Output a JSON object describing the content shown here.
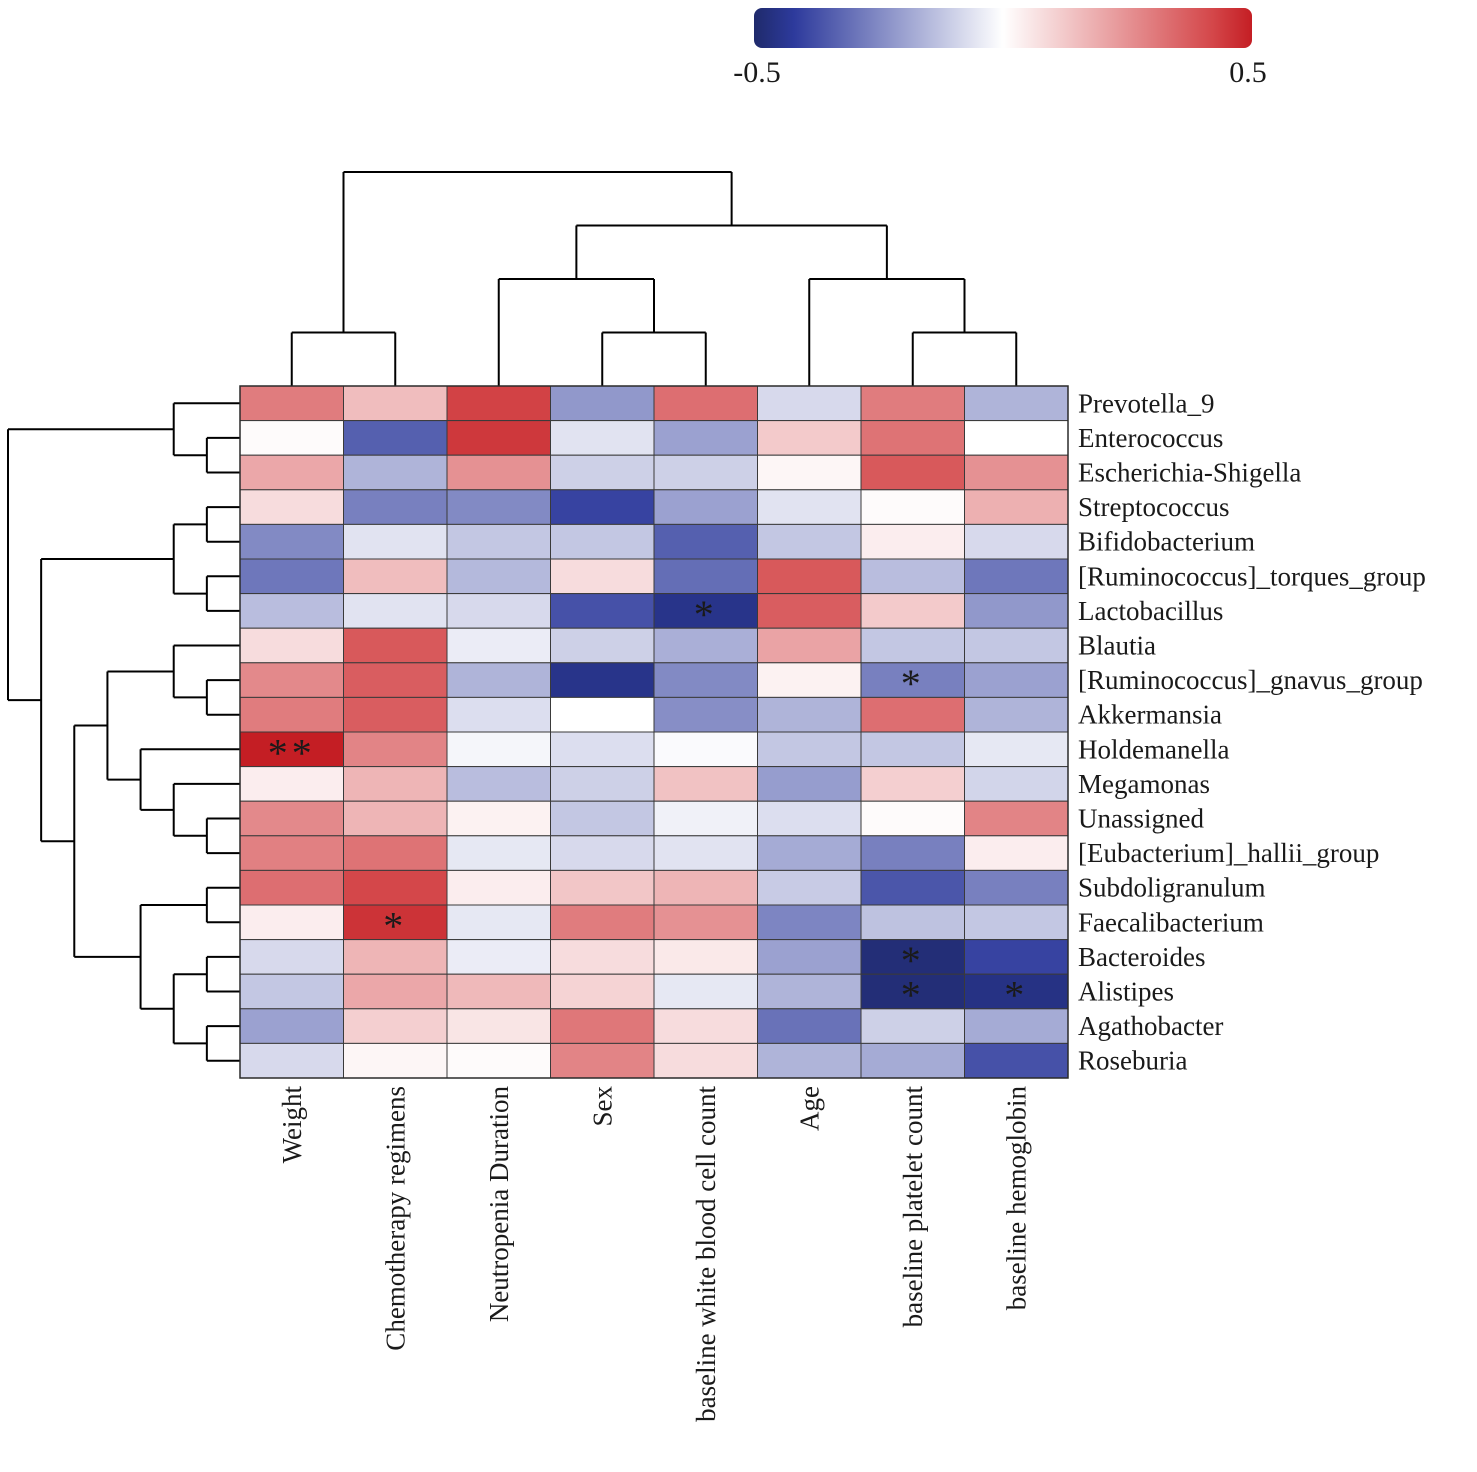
{
  "chart_data": {
    "type": "heatmap",
    "title": "",
    "colorbar": {
      "min": -0.5,
      "max": 0.5,
      "min_label": "-0.5",
      "max_label": "0.5",
      "colors": [
        "#1f2a6b",
        "#2d3a9c",
        "#ffffff",
        "#d4474a",
        "#c41e24"
      ]
    },
    "columns": [
      "Weight",
      "Chemotherapy regimens",
      "Neutropenia Duration",
      "Sex",
      "baseline white blood cell count",
      "Age",
      "baseline platelet count",
      "baseline hemoglobin"
    ],
    "rows": [
      "Prevotella_9",
      "Enterococcus",
      "Escherichia-Shigella",
      "Streptococcus",
      "Bifidobacterium",
      "[Ruminococcus]_torques_group",
      "Lactobacillus",
      "Blautia",
      "[Ruminococcus]_gnavus_group",
      "Akkermansia",
      "Holdemanella",
      "Megamonas",
      "Unassigned",
      "[Eubacterium]_hallii_group",
      "Subdoligranulum",
      "Faecalibacterium",
      "Bacteroides",
      "Alistipes",
      "Agathobacter",
      "Roseburia"
    ],
    "values": [
      [
        0.3,
        0.15,
        0.43,
        -0.22,
        0.33,
        -0.08,
        0.3,
        -0.16
      ],
      [
        0.01,
        -0.34,
        0.45,
        -0.06,
        -0.2,
        0.12,
        0.32,
        0.0
      ],
      [
        0.2,
        -0.16,
        0.25,
        -0.1,
        -0.1,
        0.02,
        0.38,
        0.25
      ],
      [
        0.08,
        -0.27,
        -0.25,
        -0.4,
        -0.2,
        -0.06,
        0.01,
        0.18
      ],
      [
        -0.25,
        -0.06,
        -0.12,
        -0.12,
        -0.34,
        -0.12,
        0.04,
        -0.08
      ],
      [
        -0.29,
        0.15,
        -0.15,
        0.08,
        -0.31,
        0.38,
        -0.14,
        -0.29
      ],
      [
        -0.14,
        -0.06,
        -0.08,
        -0.37,
        -0.45,
        0.37,
        0.12,
        -0.22
      ],
      [
        0.08,
        0.38,
        -0.04,
        -0.1,
        -0.17,
        0.21,
        -0.12,
        -0.12
      ],
      [
        0.27,
        0.37,
        -0.16,
        -0.45,
        -0.25,
        0.03,
        -0.27,
        -0.2
      ],
      [
        0.3,
        0.37,
        -0.07,
        0.0,
        -0.24,
        -0.16,
        0.33,
        -0.16
      ],
      [
        0.5,
        0.28,
        -0.02,
        -0.07,
        -0.01,
        -0.12,
        -0.12,
        -0.05
      ],
      [
        0.04,
        0.17,
        -0.14,
        -0.1,
        0.14,
        -0.21,
        0.11,
        -0.09
      ],
      [
        0.27,
        0.17,
        0.03,
        -0.12,
        -0.03,
        -0.07,
        0.01,
        0.28
      ],
      [
        0.29,
        0.32,
        -0.05,
        -0.08,
        -0.06,
        -0.18,
        -0.27,
        0.04
      ],
      [
        0.33,
        0.42,
        0.04,
        0.13,
        0.17,
        -0.11,
        -0.36,
        -0.27
      ],
      [
        0.04,
        0.46,
        -0.05,
        0.3,
        0.25,
        -0.26,
        -0.13,
        -0.12
      ],
      [
        -0.08,
        0.17,
        -0.04,
        0.08,
        0.05,
        -0.2,
        -0.48,
        -0.4
      ],
      [
        -0.12,
        0.2,
        0.16,
        0.1,
        -0.05,
        -0.16,
        -0.48,
        -0.46
      ],
      [
        -0.2,
        0.11,
        0.06,
        0.31,
        0.08,
        -0.3,
        -0.1,
        -0.18
      ],
      [
        -0.08,
        0.02,
        0.01,
        0.28,
        0.08,
        -0.16,
        -0.18,
        -0.37
      ]
    ],
    "significance": [
      {
        "row": "Lactobacillus",
        "column": "baseline white blood cell count",
        "mark": "*"
      },
      {
        "row": "[Ruminococcus]_gnavus_group",
        "column": "baseline platelet count",
        "mark": "*"
      },
      {
        "row": "Holdemanella",
        "column": "Weight",
        "mark": "**"
      },
      {
        "row": "Faecalibacterium",
        "column": "Chemotherapy regimens",
        "mark": "*"
      },
      {
        "row": "Bacteroides",
        "column": "baseline platelet count",
        "mark": "*"
      },
      {
        "row": "Alistipes",
        "column": "baseline platelet count",
        "mark": "*"
      },
      {
        "row": "Alistipes",
        "column": "baseline hemoglobin",
        "mark": "*"
      }
    ],
    "column_dendrogram": "((Weight,Chemotherapy regimens),((Neutropenia Duration,(Sex,baseline white blood cell count)),(Age,(baseline platelet count,baseline hemoglobin))))",
    "row_dendrogram": "((Prevotella_9,(Enterococcus,Escherichia-Shigella)),(((Streptococcus,Bifidobacterium),([Ruminococcus]_torques_group,Lactobacillus)),(((Blautia,([Ruminococcus]_gnavus_group,Akkermansia)),(Holdemanella,(Megamonas,(Unassigned,[Eubacterium]_hallii_group)))),((Subdoligranulum,Faecalibacterium),((Bacteroides,Alistipes),(Agathobacter,Roseburia))))))"
  }
}
